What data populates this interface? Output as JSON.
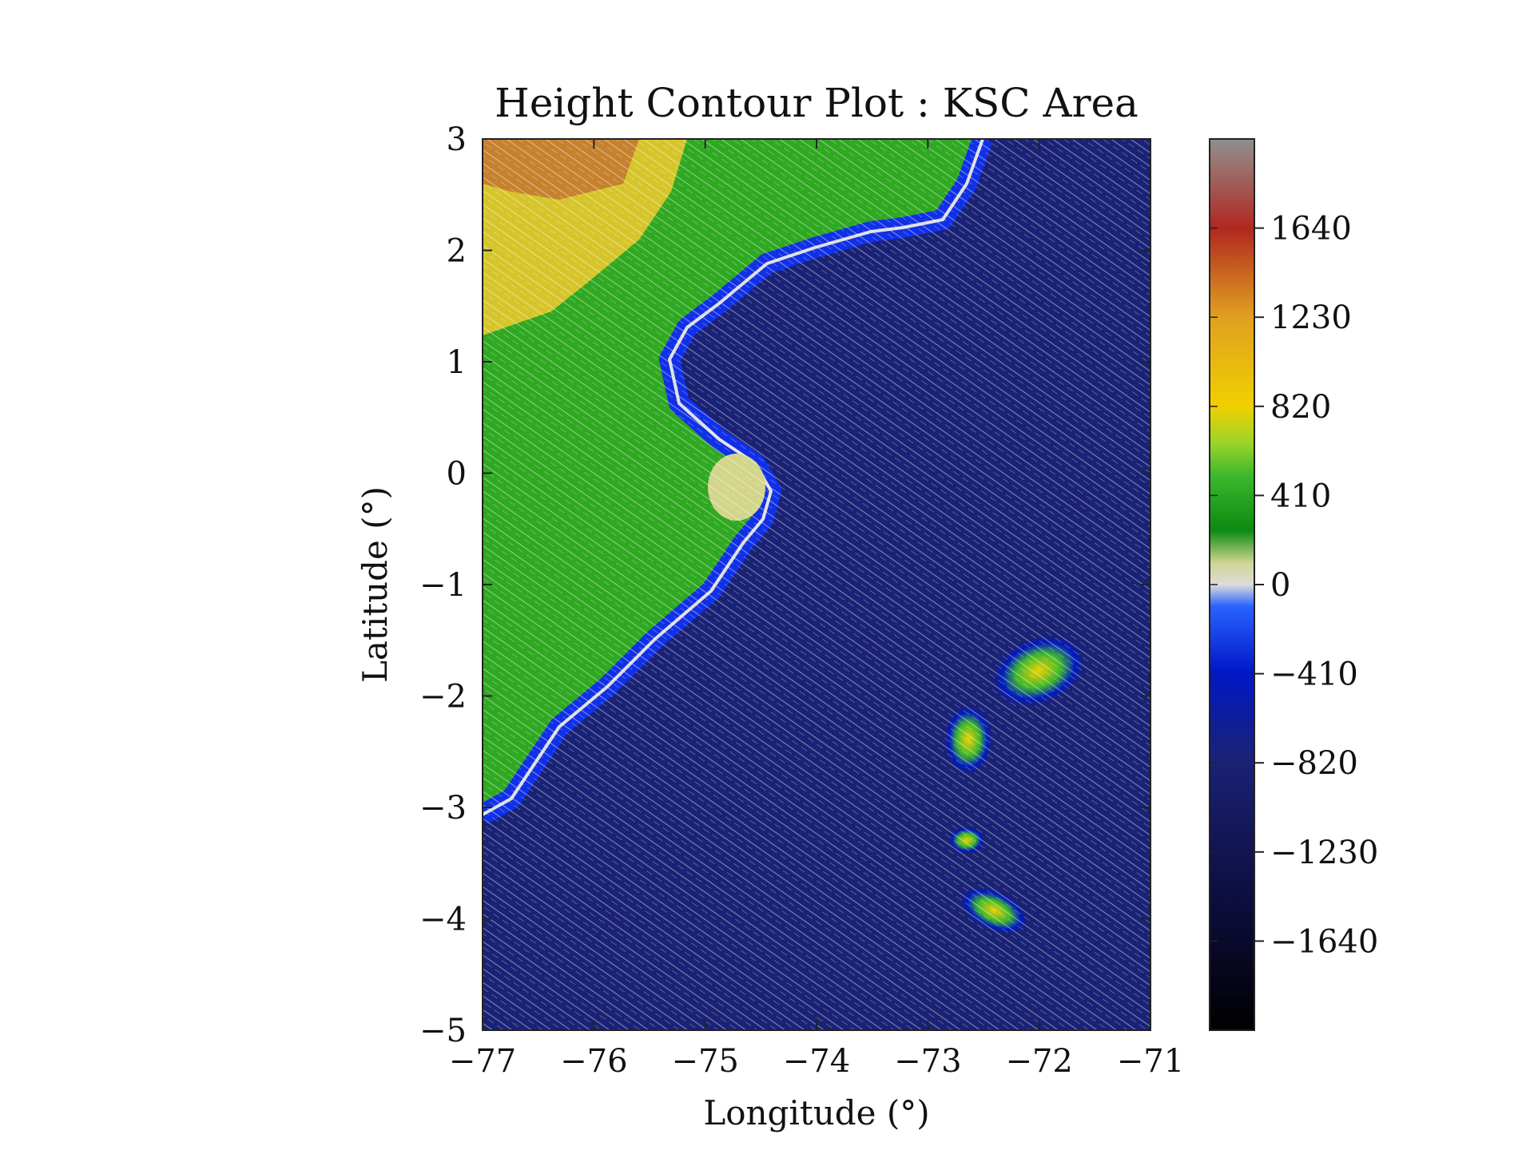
{
  "chart_data": {
    "type": "heatmap",
    "title": "Height Contour Plot : KSC Area",
    "xlabel": "Longitude (°)",
    "ylabel": "Latitude (°)",
    "xlim": [
      -77,
      -71
    ],
    "ylim": [
      -5,
      3
    ],
    "x_ticks": [
      -77,
      -76,
      -75,
      -74,
      -73,
      -72,
      -71
    ],
    "y_ticks": [
      -5,
      -4,
      -3,
      -2,
      -1,
      0,
      1,
      2,
      3
    ],
    "x_tick_labels": [
      "−77",
      "−76",
      "−75",
      "−74",
      "−73",
      "−72",
      "−71"
    ],
    "y_tick_labels": [
      "−5",
      "−4",
      "−3",
      "−2",
      "−1",
      "0",
      "1",
      "2",
      "3"
    ],
    "colorbar": {
      "range": [
        -2050,
        2050
      ],
      "ticks": [
        1640,
        1230,
        820,
        410,
        0,
        -410,
        -820,
        -1230,
        -1640
      ],
      "tick_labels": [
        "1640",
        "1230",
        "820",
        "410",
        "0",
        "−410",
        "−820",
        "−1230",
        "−1640"
      ],
      "stops": [
        {
          "value": -2050,
          "color": "#000000"
        },
        {
          "value": -1500,
          "color": "#0c0c3a"
        },
        {
          "value": -800,
          "color": "#1a2275"
        },
        {
          "value": -400,
          "color": "#0018c8"
        },
        {
          "value": -100,
          "color": "#2a62ff"
        },
        {
          "value": 0,
          "color": "#dcdcdc"
        },
        {
          "value": 100,
          "color": "#cfd592"
        },
        {
          "value": 250,
          "color": "#0c8a12"
        },
        {
          "value": 500,
          "color": "#3cb82c"
        },
        {
          "value": 650,
          "color": "#9bd42a"
        },
        {
          "value": 820,
          "color": "#f0d000"
        },
        {
          "value": 1230,
          "color": "#e1a020"
        },
        {
          "value": 1640,
          "color": "#b02820"
        },
        {
          "value": 2050,
          "color": "#909090"
        }
      ]
    },
    "legend": "colorbar-right",
    "grid": false
  }
}
